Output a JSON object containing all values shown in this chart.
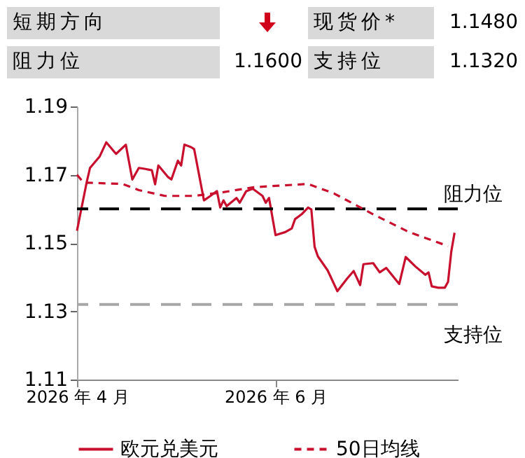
{
  "chart_data": {
    "type": "line",
    "annotations": [
      "短期方向",
      "现货价*",
      "1.1480",
      "阻力位",
      "1.1600",
      "支持位",
      "1.1320"
    ],
    "x": [
      "2026-04-01",
      "2026-04-02",
      "2026-04-04",
      "2026-04-05",
      "2026-04-08",
      "2026-04-10",
      "2026-04-13",
      "2026-04-16",
      "2026-04-18",
      "2026-04-20",
      "2026-04-22",
      "2026-04-24",
      "2026-04-25",
      "2026-04-26",
      "2026-04-29",
      "2026-04-30",
      "2026-05-02",
      "2026-05-03",
      "2026-05-04",
      "2026-05-06",
      "2026-05-07",
      "2026-05-10",
      "2026-05-12",
      "2026-05-14",
      "2026-05-15",
      "2026-05-16",
      "2026-05-17",
      "2026-05-20",
      "2026-05-21",
      "2026-05-23",
      "2026-05-25",
      "2026-05-28",
      "2026-05-29",
      "2026-05-30",
      "2026-06-01",
      "2026-06-04",
      "2026-06-06",
      "2026-06-07",
      "2026-06-09",
      "2026-06-11",
      "2026-06-12",
      "2026-06-13",
      "2026-06-14",
      "2026-06-17",
      "2026-06-20",
      "2026-06-23",
      "2026-06-25",
      "2026-06-27",
      "2026-06-28",
      "2026-07-01",
      "2026-07-03",
      "2026-07-05",
      "2026-07-09",
      "2026-07-11",
      "2026-07-14",
      "2026-07-17",
      "2026-07-18",
      "2026-07-19",
      "2026-07-21",
      "2026-07-23",
      "2026-07-24",
      "2026-07-25",
      "2026-07-26"
    ],
    "series": [
      {
        "name": "欧元兑美元",
        "color": "#c8102e",
        "line_style": "solid",
        "values": [
          1.1536,
          1.1584,
          1.1679,
          1.172,
          1.1754,
          1.1795,
          1.1761,
          1.1788,
          1.1686,
          1.172,
          1.1717,
          1.1713,
          1.1672,
          1.1727,
          1.1693,
          1.1686,
          1.1741,
          1.1727,
          1.1788,
          1.1781,
          1.1775,
          1.1625,
          1.1638,
          1.1652,
          1.1604,
          1.1625,
          1.1608,
          1.1632,
          1.1618,
          1.1652,
          1.1659,
          1.1638,
          1.1618,
          1.1632,
          1.1523,
          1.1532,
          1.1543,
          1.157,
          1.1584,
          1.1604,
          1.1598,
          1.1489,
          1.1461,
          1.142,
          1.1359,
          1.1396,
          1.1418,
          1.1377,
          1.1438,
          1.1441,
          1.1414,
          1.1427,
          1.138,
          1.1459,
          1.1431,
          1.1407,
          1.1414,
          1.1373,
          1.1369,
          1.1369,
          1.1386,
          1.1475,
          1.153
        ]
      },
      {
        "name": "50日均线",
        "color": "#c8102e",
        "line_style": "dashed",
        "x": [
          "2026-04-01",
          "2026-04-03",
          "2026-04-15",
          "2026-04-20",
          "2026-04-28",
          "2026-05-07",
          "2026-05-16",
          "2026-05-25",
          "2026-06-02",
          "2026-06-11",
          "2026-06-19",
          "2026-07-01",
          "2026-07-12",
          "2026-07-24"
        ],
        "values": [
          1.17,
          1.1677,
          1.1673,
          1.1655,
          1.1638,
          1.1638,
          1.1649,
          1.1663,
          1.1668,
          1.1673,
          1.1645,
          1.1584,
          1.1532,
          1.1491
        ]
      }
    ],
    "xlim": [
      "2026-04-01",
      "2026-07-27"
    ],
    "xticks": [
      {
        "value": "2026-04-01",
        "label": "2026 年 4 月"
      },
      {
        "value": "2026-06-01",
        "label": "2026 年 6 月"
      }
    ],
    "ylim": [
      1.11,
      1.19
    ],
    "yticks": [
      1.11,
      1.13,
      1.15,
      1.17,
      1.19
    ],
    "ref_lines": [
      {
        "axis": "y",
        "value": 1.16,
        "label": "阻力位",
        "color": "#000000",
        "line_style": "dashed"
      },
      {
        "axis": "y",
        "value": 1.132,
        "label": "支持位",
        "color": "#a6a6a6",
        "line_style": "dashed"
      }
    ],
    "grid": false,
    "legend": "bottom"
  }
}
